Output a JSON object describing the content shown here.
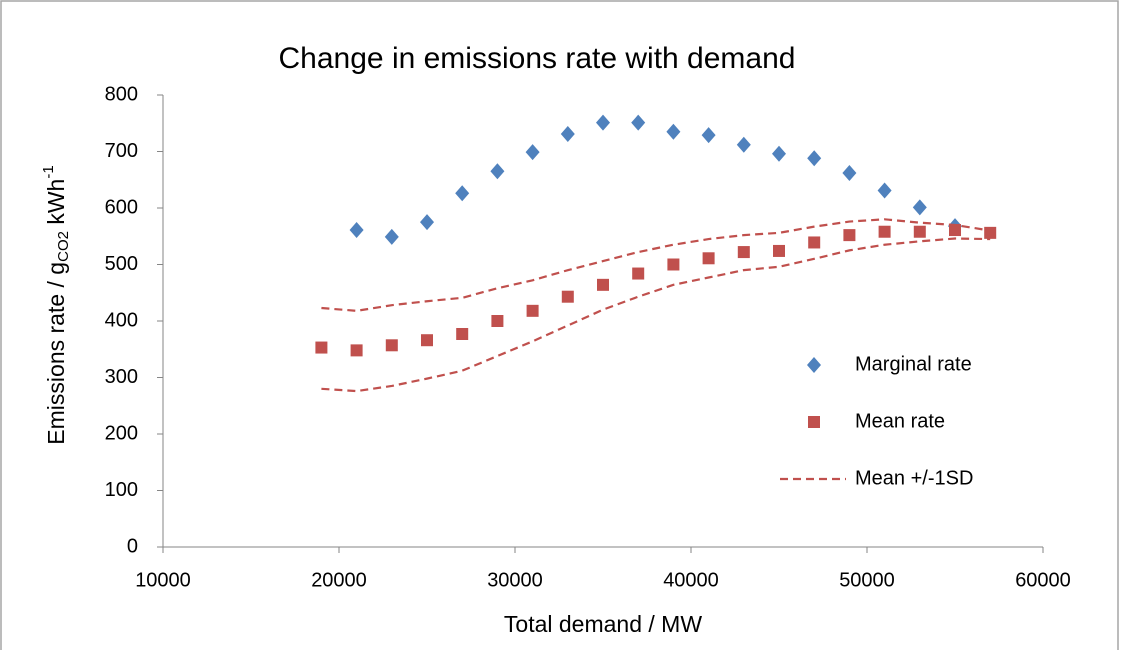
{
  "chart_data": {
    "type": "scatter",
    "title": "Change in emissions rate with demand",
    "xlabel": "Total demand / MW",
    "ylabel": {
      "text": "Emissions  rate / g",
      "sub": "CO2",
      "unit": " kWh",
      "sup": "-1"
    },
    "xlim": [
      10000,
      60000
    ],
    "xticks": [
      10000,
      20000,
      30000,
      40000,
      50000,
      60000
    ],
    "ylim": [
      0,
      800
    ],
    "yticks": [
      0,
      100,
      200,
      300,
      400,
      500,
      600,
      700,
      800
    ],
    "grid": false,
    "legend": "right",
    "series": [
      {
        "name": "Marginal rate",
        "color": "#4f81bd",
        "marker": "diamond",
        "x": [
          21000,
          23000,
          25000,
          27000,
          29000,
          31000,
          33000,
          35000,
          37000,
          39000,
          41000,
          43000,
          45000,
          47000,
          49000,
          51000,
          53000,
          55000
        ],
        "values": [
          561,
          549,
          575,
          626,
          665,
          699,
          731,
          751,
          751,
          735,
          729,
          712,
          696,
          688,
          662,
          631,
          601,
          568
        ]
      },
      {
        "name": "Mean rate",
        "color": "#c0504d",
        "marker": "square",
        "x": [
          19000,
          21000,
          23000,
          25000,
          27000,
          29000,
          31000,
          33000,
          35000,
          37000,
          39000,
          41000,
          43000,
          45000,
          47000,
          49000,
          51000,
          53000,
          55000,
          57000
        ],
        "values": [
          353,
          348,
          357,
          366,
          377,
          400,
          418,
          443,
          464,
          484,
          500,
          511,
          522,
          524,
          539,
          552,
          558,
          558,
          561,
          556
        ]
      },
      {
        "name": "Mean +/-1SD",
        "color": "#c0504d",
        "line": "dashed",
        "x": [
          19000,
          21000,
          23000,
          25000,
          27000,
          29000,
          31000,
          33000,
          35000,
          37000,
          39000,
          41000,
          43000,
          45000,
          47000,
          49000,
          51000,
          53000,
          55000,
          57000
        ],
        "upper": [
          423,
          418,
          428,
          435,
          441,
          458,
          472,
          490,
          506,
          522,
          535,
          545,
          552,
          556,
          567,
          576,
          580,
          574,
          570,
          560
        ],
        "lower": [
          280,
          276,
          285,
          298,
          312,
          338,
          364,
          392,
          420,
          443,
          464,
          477,
          490,
          496,
          510,
          525,
          535,
          541,
          546,
          545
        ]
      }
    ]
  }
}
